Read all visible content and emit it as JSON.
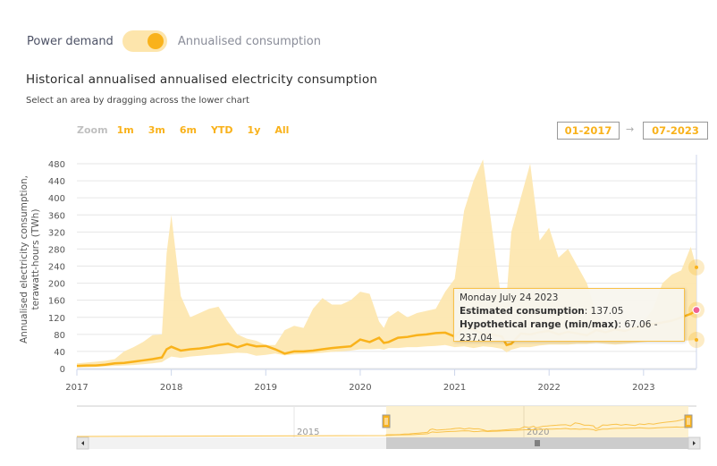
{
  "toggle": {
    "left_label": "Power demand",
    "right_label": "Annualised consumption",
    "state": "on"
  },
  "header": {
    "title": "Historical annualised annualised electricity consumption",
    "subtitle": "Select an area by dragging across the lower chart"
  },
  "range_selector": {
    "zoom_label": "Zoom",
    "buttons": [
      "1m",
      "3m",
      "6m",
      "YTD",
      "1y",
      "All"
    ],
    "from": "01-2017",
    "arrow": "→",
    "to": "07-2023"
  },
  "tooltip": {
    "date": "Monday July 24 2023",
    "estimate_label": "Estimated consumption",
    "estimate_value": "137.05",
    "range_label": "Hypothetical range (min/max)",
    "range_value": "67.06 - 237.04"
  },
  "colors": {
    "accent": "#f9b21b",
    "band": "#fde7b0",
    "marker": "#f06292"
  },
  "chart_data": {
    "type": "area",
    "title": "Historical annualised annualised electricity consumption",
    "xlabel": "",
    "ylabel": "Annualised electricity consumption, terawatt-hours (TWh)",
    "ylim": [
      0,
      480
    ],
    "xlim": [
      2017.0,
      2023.56
    ],
    "yticks": [
      0,
      40,
      80,
      120,
      160,
      200,
      240,
      280,
      320,
      360,
      400,
      440,
      480
    ],
    "xticks": [
      "2017",
      "2018",
      "2019",
      "2020",
      "2021",
      "2022",
      "2023"
    ],
    "grid": true,
    "series": [
      {
        "name": "Estimated consumption",
        "x": [
          2017.0,
          2017.1,
          2017.2,
          2017.3,
          2017.4,
          2017.5,
          2017.6,
          2017.7,
          2017.8,
          2017.9,
          2017.95,
          2018.0,
          2018.1,
          2018.2,
          2018.3,
          2018.4,
          2018.5,
          2018.6,
          2018.7,
          2018.8,
          2018.9,
          2019.0,
          2019.1,
          2019.2,
          2019.3,
          2019.4,
          2019.5,
          2019.6,
          2019.7,
          2019.8,
          2019.9,
          2020.0,
          2020.1,
          2020.2,
          2020.25,
          2020.3,
          2020.4,
          2020.5,
          2020.6,
          2020.7,
          2020.8,
          2020.9,
          2021.0,
          2021.1,
          2021.2,
          2021.3,
          2021.4,
          2021.5,
          2021.55,
          2021.6,
          2021.7,
          2021.8,
          2021.9,
          2022.0,
          2022.1,
          2022.2,
          2022.3,
          2022.4,
          2022.5,
          2022.6,
          2022.7,
          2022.8,
          2022.9,
          2023.0,
          2023.1,
          2023.2,
          2023.3,
          2023.4,
          2023.5,
          2023.56
        ],
        "values": [
          6,
          7,
          7,
          9,
          12,
          13,
          16,
          19,
          22,
          26,
          45,
          51,
          42,
          45,
          47,
          50,
          55,
          58,
          50,
          57,
          52,
          53,
          45,
          35,
          40,
          40,
          42,
          45,
          48,
          50,
          52,
          68,
          62,
          72,
          60,
          62,
          72,
          74,
          78,
          80,
          83,
          84,
          75,
          98,
          92,
          80,
          80,
          75,
          55,
          58,
          82,
          80,
          85,
          88,
          80,
          86,
          82,
          78,
          90,
          85,
          92,
          88,
          95,
          100,
          104,
          108,
          112,
          120,
          128,
          137.05
        ]
      },
      {
        "name": "Hypothetical range (min)",
        "values": [
          3,
          3,
          4,
          5,
          6,
          7,
          8,
          10,
          12,
          15,
          22,
          28,
          25,
          28,
          30,
          32,
          33,
          35,
          37,
          36,
          30,
          32,
          35,
          31,
          33,
          34,
          35,
          37,
          39,
          40,
          42,
          45,
          45,
          46,
          44,
          48,
          48,
          50,
          50,
          52,
          53,
          55,
          50,
          52,
          48,
          52,
          50,
          46,
          38,
          44,
          50,
          50,
          54,
          56,
          56,
          56,
          58,
          58,
          60,
          58,
          56,
          58,
          60,
          62,
          64,
          65,
          66,
          65,
          66,
          67.06
        ]
      },
      {
        "name": "Hypothetical range (max)",
        "values": [
          12,
          14,
          16,
          18,
          22,
          40,
          50,
          62,
          78,
          80,
          270,
          360,
          170,
          120,
          130,
          140,
          145,
          110,
          80,
          70,
          65,
          55,
          55,
          90,
          100,
          95,
          140,
          165,
          150,
          150,
          160,
          180,
          175,
          110,
          95,
          120,
          135,
          120,
          130,
          135,
          140,
          180,
          210,
          370,
          440,
          490,
          320,
          150,
          170,
          320,
          400,
          480,
          300,
          330,
          260,
          280,
          240,
          200,
          130,
          100,
          90,
          90,
          95,
          110,
          140,
          200,
          220,
          230,
          285,
          237.04
        ]
      }
    ],
    "highlight": {
      "date": "Monday July 24 2023",
      "estimate": 137.05,
      "min": 67.06,
      "max": 237.04
    },
    "navigator": {
      "ticks": [
        "2015",
        "2020"
      ],
      "selection_from": "01-2017",
      "selection_to": "07-2023"
    }
  }
}
